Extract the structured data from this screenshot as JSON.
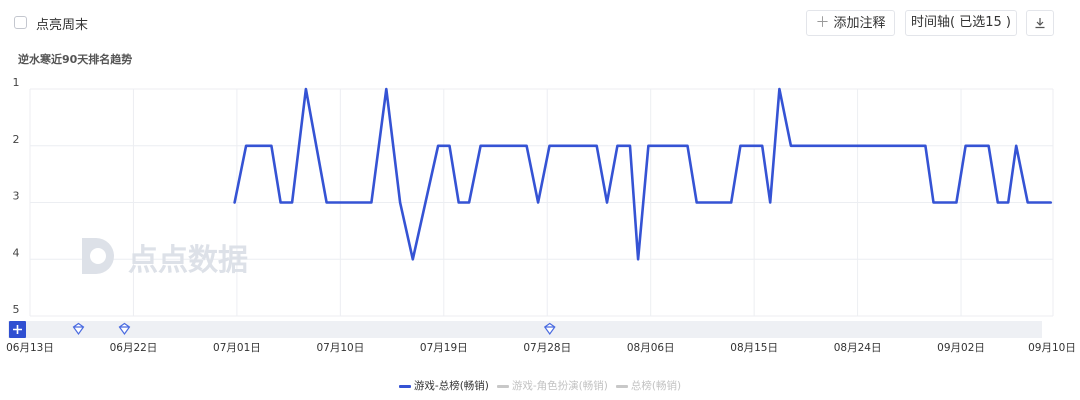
{
  "toolbar": {
    "highlight_weekend_label": "点亮周末",
    "add_annotation_label": "添加注释",
    "timeline_label": "时间轴( 已选15 )",
    "download_icon": "download-icon"
  },
  "colors": {
    "accent": "#3553d4",
    "grid": "#eceef2",
    "zoom_bar": "#eef0f4",
    "legend_off": "#c8c8c8"
  },
  "watermark": {
    "text": "点点数据"
  },
  "chart_data": {
    "type": "line",
    "title": "逆水寒近90天排名趋势",
    "y_inverted": true,
    "ylim": [
      1,
      5
    ],
    "yticks": [
      "1",
      "2",
      "3",
      "4",
      "5"
    ],
    "x_start": "06-13",
    "x_days": 89,
    "x_tick_labels": [
      "06月13日",
      "06月22日",
      "07月01日",
      "07月10日",
      "07月19日",
      "07月28日",
      "08月06日",
      "08月15日",
      "08月24日",
      "09月02日",
      "09月10日"
    ],
    "x_tick_days": [
      0,
      9,
      18,
      27,
      36,
      45,
      54,
      63,
      72,
      81,
      89
    ],
    "annotation_days": [
      3,
      7,
      44
    ],
    "legend_position": "bottom",
    "series": [
      {
        "name": "游戏-总榜(畅销)",
        "active": true,
        "points": [
          [
            17.8,
            3
          ],
          [
            18.8,
            2
          ],
          [
            21.0,
            2
          ],
          [
            21.8,
            3
          ],
          [
            22.8,
            3
          ],
          [
            24.0,
            1
          ],
          [
            25.8,
            3
          ],
          [
            29.7,
            3
          ],
          [
            31.0,
            1
          ],
          [
            32.2,
            3
          ],
          [
            33.3,
            4
          ],
          [
            35.5,
            2
          ],
          [
            36.5,
            2
          ],
          [
            37.3,
            3
          ],
          [
            38.2,
            3
          ],
          [
            39.2,
            2
          ],
          [
            43.2,
            2
          ],
          [
            44.2,
            3
          ],
          [
            45.2,
            2
          ],
          [
            49.3,
            2
          ],
          [
            50.2,
            3
          ],
          [
            51.1,
            2
          ],
          [
            52.2,
            2
          ],
          [
            52.9,
            4
          ],
          [
            53.8,
            2
          ],
          [
            57.2,
            2
          ],
          [
            58.0,
            3
          ],
          [
            61.0,
            3
          ],
          [
            61.8,
            2
          ],
          [
            63.7,
            2
          ],
          [
            64.4,
            3
          ],
          [
            65.2,
            1
          ],
          [
            66.2,
            2
          ],
          [
            77.9,
            2
          ],
          [
            78.6,
            3
          ],
          [
            80.6,
            3
          ],
          [
            81.4,
            2
          ],
          [
            83.4,
            2
          ],
          [
            84.2,
            3
          ],
          [
            85.1,
            3
          ],
          [
            85.8,
            2
          ],
          [
            86.8,
            3
          ],
          [
            88.8,
            3
          ]
        ]
      },
      {
        "name": "游戏-角色扮演(畅销)",
        "active": false,
        "points": []
      },
      {
        "name": "总榜(畅销)",
        "active": false,
        "points": []
      }
    ]
  }
}
